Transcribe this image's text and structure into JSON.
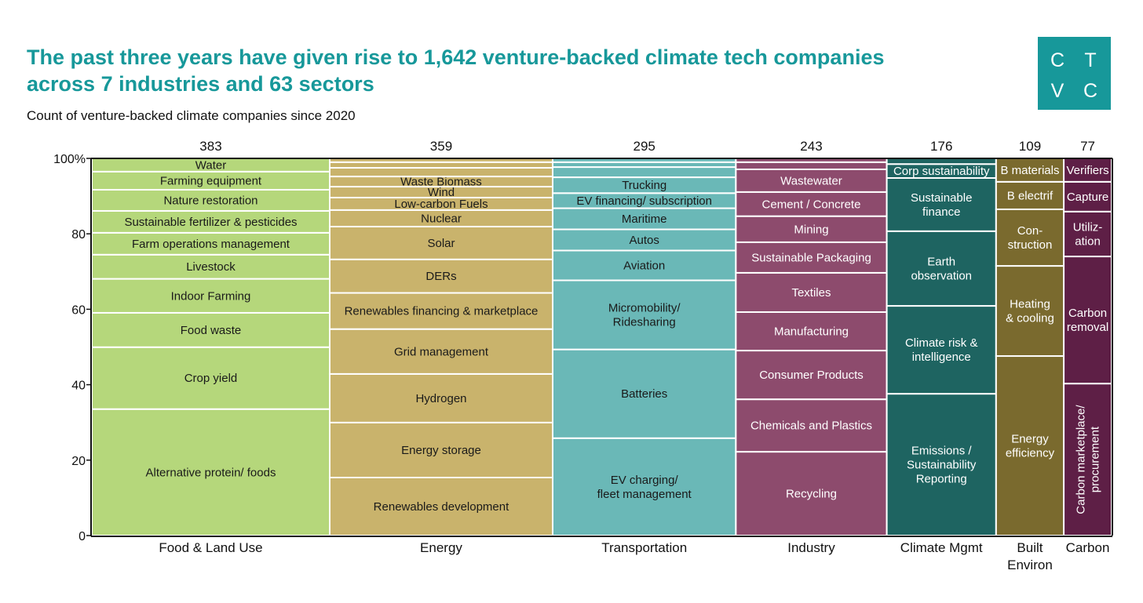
{
  "header": {
    "title_line1": "The past three years have given rise to 1,642 venture-backed climate tech companies",
    "title_line2": "across 7 industries and 63 sectors",
    "subtitle": "Count of venture-backed climate companies since 2020",
    "logo": [
      "C",
      "T",
      "V",
      "C"
    ]
  },
  "chart_data": {
    "type": "marimekko",
    "title": "Count of venture-backed climate companies since 2020",
    "ylabel": "",
    "ylim": [
      0,
      100
    ],
    "y_ticks": [
      "0",
      "20",
      "40",
      "60",
      "80",
      "100%"
    ],
    "y_tick_values": [
      0,
      20,
      40,
      60,
      80,
      100
    ],
    "industries": [
      {
        "name": [
          "Food & Land Use"
        ],
        "count": 383,
        "color": "#b5d77b",
        "text_color": "#1a1a1a",
        "segments": [
          {
            "lines": [
              "Alternative protein/ foods"
            ],
            "value": 33.5
          },
          {
            "lines": [
              "Crop yield"
            ],
            "value": 16.4
          },
          {
            "lines": [
              "Food waste"
            ],
            "value": 9.1
          },
          {
            "lines": [
              "Indoor Farming"
            ],
            "value": 9.0
          },
          {
            "lines": [
              "Livestock"
            ],
            "value": 6.4
          },
          {
            "lines": [
              "Farm operations management"
            ],
            "value": 5.8
          },
          {
            "lines": [
              "Sustainable fertilizer & pesticides"
            ],
            "value": 5.8
          },
          {
            "lines": [
              "Nature restoration"
            ],
            "value": 5.6
          },
          {
            "lines": [
              "Farming equipment"
            ],
            "value": 4.8
          },
          {
            "lines": [
              "Water"
            ],
            "value": 3.5
          }
        ]
      },
      {
        "name": [
          "Energy"
        ],
        "count": 359,
        "color": "#c9b36c",
        "text_color": "#1a1a1a",
        "segments": [
          {
            "lines": [
              "Renewables development"
            ],
            "value": 15.4
          },
          {
            "lines": [
              "Energy storage"
            ],
            "value": 14.6
          },
          {
            "lines": [
              "Hydrogen"
            ],
            "value": 12.9
          },
          {
            "lines": [
              "Grid management"
            ],
            "value": 11.9
          },
          {
            "lines": [
              "Renewables financing & marketplace"
            ],
            "value": 9.6
          },
          {
            "lines": [
              "DERs"
            ],
            "value": 8.9
          },
          {
            "lines": [
              "Solar"
            ],
            "value": 8.7
          },
          {
            "lines": [
              "Nuclear"
            ],
            "value": 4.4
          },
          {
            "lines": [
              "Low-carbon Fuels"
            ],
            "value": 3.3
          },
          {
            "lines": [
              "Wind"
            ],
            "value": 2.9
          },
          {
            "lines": [
              "Waste Biomass"
            ],
            "value": 2.7
          },
          {
            "lines": [],
            "value": 2.3
          },
          {
            "lines": [],
            "value": 1.5
          },
          {
            "lines": [],
            "value": 1.0
          }
        ]
      },
      {
        "name": [
          "Transportation"
        ],
        "count": 295,
        "color": "#6ab8b7",
        "text_color": "#1a1a1a",
        "segments": [
          {
            "lines": [
              "EV charging/",
              "fleet management"
            ],
            "value": 25.8
          },
          {
            "lines": [
              "Batteries"
            ],
            "value": 23.5
          },
          {
            "lines": [
              "Micromobility/",
              "Ridesharing"
            ],
            "value": 18.3
          },
          {
            "lines": [
              "Aviation"
            ],
            "value": 7.9
          },
          {
            "lines": [
              "Autos"
            ],
            "value": 5.6
          },
          {
            "lines": [
              "Maritime"
            ],
            "value": 5.6
          },
          {
            "lines": [
              "EV financing/ subscription"
            ],
            "value": 4.0
          },
          {
            "lines": [
              "Trucking"
            ],
            "value": 4.2
          },
          {
            "lines": [],
            "value": 2.7
          },
          {
            "lines": [],
            "value": 1.3
          },
          {
            "lines": [],
            "value": 1.0
          }
        ]
      },
      {
        "name": [
          "Industry"
        ],
        "count": 243,
        "color": "#8d4b6d",
        "text_color": "#ffffff",
        "segments": [
          {
            "lines": [
              "Recycling"
            ],
            "value": 22.2
          },
          {
            "lines": [
              "Chemicals and Plastics"
            ],
            "value": 13.9
          },
          {
            "lines": [
              "Consumer Products"
            ],
            "value": 12.9
          },
          {
            "lines": [
              "Manufacturing"
            ],
            "value": 10.2
          },
          {
            "lines": [
              "Textiles"
            ],
            "value": 10.4
          },
          {
            "lines": [
              "Sustainable Packaging"
            ],
            "value": 8.1
          },
          {
            "lines": [
              "Mining"
            ],
            "value": 6.9
          },
          {
            "lines": [
              "Cement / Concrete"
            ],
            "value": 6.4
          },
          {
            "lines": [
              "Wastewater"
            ],
            "value": 6.0
          },
          {
            "lines": [],
            "value": 1.9
          },
          {
            "lines": [],
            "value": 1.0
          }
        ]
      },
      {
        "name": [
          "Climate Mgmt"
        ],
        "count": 176,
        "color": "#1e6461",
        "text_color": "#ffffff",
        "segments": [
          {
            "lines": [
              "Emissions /",
              "Sustainability",
              "Reporting"
            ],
            "value": 37.6
          },
          {
            "lines": [
              "Climate risk &",
              "intelligence"
            ],
            "value": 23.3
          },
          {
            "lines": [
              "Earth",
              "observation"
            ],
            "value": 19.8
          },
          {
            "lines": [
              "Sustainable",
              "finance"
            ],
            "value": 14.1
          },
          {
            "lines": [
              "Corp sustainability"
            ],
            "value": 3.7
          },
          {
            "lines": [],
            "value": 1.5
          }
        ]
      },
      {
        "name": [
          "Built",
          "Environ"
        ],
        "count": 109,
        "color": "#7a6a2e",
        "text_color": "#ffffff",
        "segments": [
          {
            "lines": [
              "Energy",
              "efficiency"
            ],
            "value": 47.6
          },
          {
            "lines": [
              "Heating",
              "& cooling"
            ],
            "value": 23.9
          },
          {
            "lines": [
              "Con-",
              "struction"
            ],
            "value": 15.0
          },
          {
            "lines": [
              "B electrif"
            ],
            "value": 7.3
          },
          {
            "lines": [
              "B materials"
            ],
            "value": 6.2
          }
        ]
      },
      {
        "name": [
          "Carbon"
        ],
        "count": 77,
        "color": "#5e1f46",
        "text_color": "#ffffff",
        "segments": [
          {
            "lines": [
              "Carbon marketplace/",
              "procurement"
            ],
            "value": 40.3
          },
          {
            "lines": [
              "Carbon",
              "removal"
            ],
            "value": 33.7
          },
          {
            "lines": [
              "Utiliz-",
              "ation"
            ],
            "value": 11.9
          },
          {
            "lines": [
              "Capture"
            ],
            "value": 7.9
          },
          {
            "lines": [
              "Verifiers"
            ],
            "value": 6.2
          }
        ]
      }
    ]
  }
}
